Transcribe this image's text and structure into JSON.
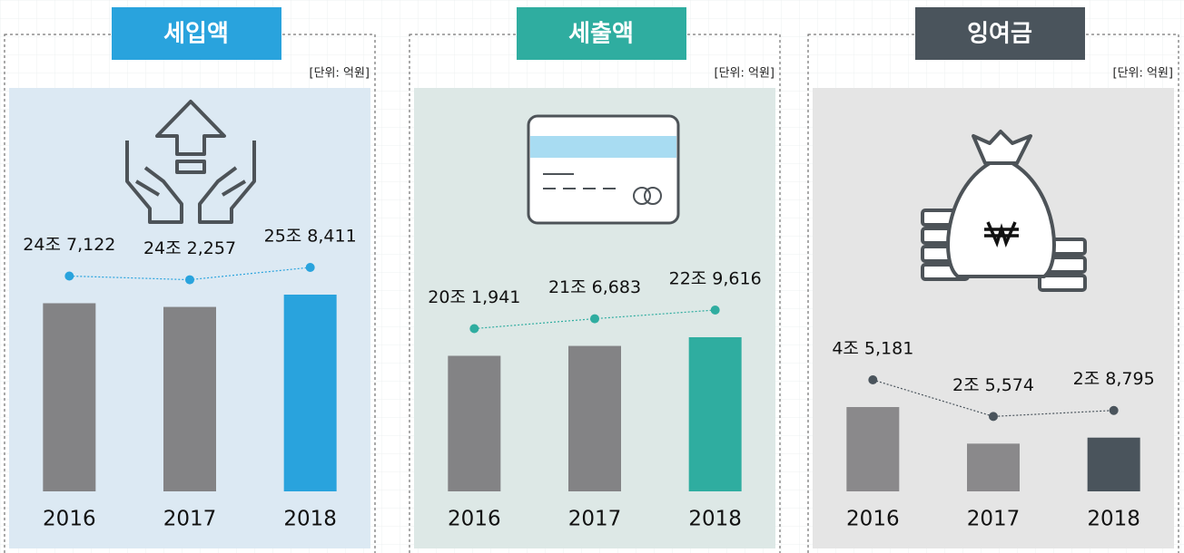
{
  "chart_data": [
    {
      "type": "bar",
      "title": "세입액",
      "unit": "[단위: 억원]",
      "accent": "#29a3dd",
      "panel_color": "#dce9f3",
      "bar_color": "#838385",
      "categories": [
        "2016",
        "2017",
        "2018"
      ],
      "values": [
        247122,
        242257,
        258411
      ],
      "value_labels": [
        "24조 7,122",
        "24조 2,257",
        "25조 8,411"
      ]
    },
    {
      "type": "bar",
      "title": "세출액",
      "unit": "[단위: 억원]",
      "accent": "#2fada0",
      "panel_color": "#dde8e6",
      "bar_color": "#838385",
      "categories": [
        "2016",
        "2017",
        "2018"
      ],
      "values": [
        201941,
        216683,
        229616
      ],
      "value_labels": [
        "20조 1,941",
        "21조 6,683",
        "22조 9,616"
      ]
    },
    {
      "type": "bar",
      "title": "잉여금",
      "unit": "[단위: 억원]",
      "accent": "#4a545c",
      "panel_color": "#e5e5e5",
      "bar_color": "#8a898b",
      "categories": [
        "2016",
        "2017",
        "2018"
      ],
      "values": [
        45181,
        25574,
        28795
      ],
      "value_labels": [
        "4조 5,181",
        "2조 5,574",
        "2조 8,795"
      ]
    }
  ]
}
